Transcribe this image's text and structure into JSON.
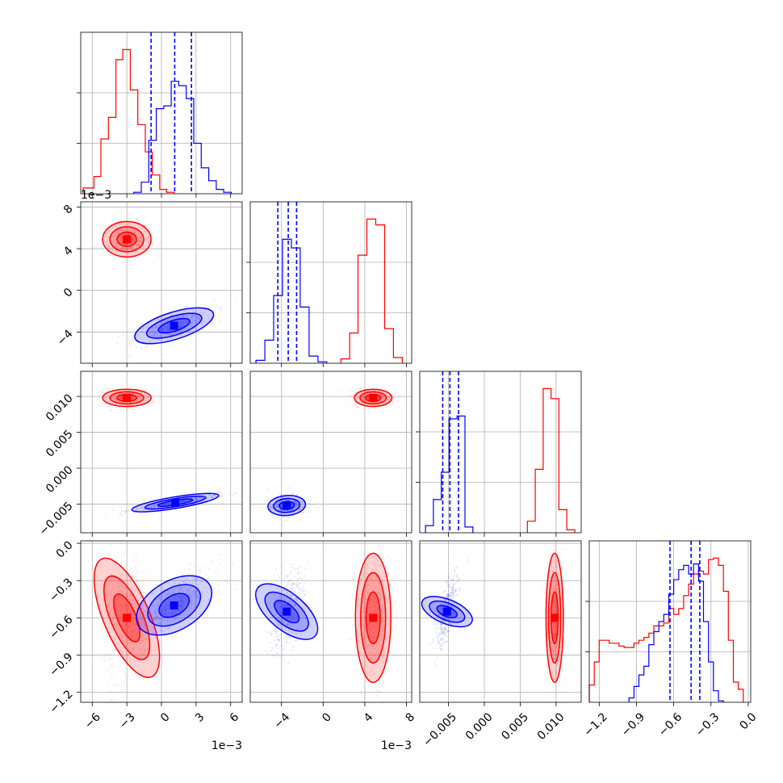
{
  "chart_data": {
    "type": "corner",
    "n_params": 4,
    "colors": {
      "red": "#ff0000",
      "blue": "#0000ff"
    },
    "grid": true,
    "series": [
      {
        "color": "#ff0000"
      },
      {
        "color": "#0000ff"
      }
    ],
    "axes": [
      {
        "range": [
          -7.0,
          7.0
        ],
        "ticks": [
          -6,
          -3,
          0,
          3,
          6
        ],
        "tick_labels": [
          "−6",
          "−3",
          "0",
          "3",
          "6"
        ],
        "offset_label": "1e−3"
      },
      {
        "range": [
          -7.0,
          8.5
        ],
        "ticks": [
          -4,
          0,
          4,
          8
        ],
        "tick_labels": [
          "−4",
          "0",
          "4",
          "8"
        ],
        "offset_label": "1e−3"
      },
      {
        "range": [
          -0.009,
          0.0135
        ],
        "ticks": [
          -0.005,
          0.0,
          0.005,
          0.01
        ],
        "tick_labels": [
          "−0.005",
          "0.000",
          "0.005",
          "0.010"
        ],
        "offset_label": ""
      },
      {
        "range": [
          -1.28,
          0.02
        ],
        "ticks": [
          -1.2,
          -0.9,
          -0.6,
          -0.3,
          0.0
        ],
        "tick_labels": [
          "−1.2",
          "−0.9",
          "−0.6",
          "−0.3",
          "0.0"
        ],
        "offset_label": ""
      }
    ],
    "histograms": [
      {
        "param": 0,
        "ymax": 1.12,
        "red": {
          "edges": [
            -6.8,
            -5.85,
            -5.25,
            -4.6,
            -3.95,
            -3.35,
            -2.7,
            -2.05,
            -1.4,
            -0.8,
            -0.15,
            0.45,
            1.1
          ],
          "counts": [
            0.04,
            0.12,
            0.38,
            0.53,
            0.93,
            1.0,
            0.72,
            0.48,
            0.29,
            0.13,
            0.03,
            0.01
          ]
        },
        "blue": {
          "edges": [
            -2.4,
            -1.75,
            -1.1,
            -0.45,
            0.2,
            0.85,
            1.5,
            2.15,
            2.8,
            3.45,
            4.1,
            4.75,
            5.4,
            6.05
          ],
          "counts": [
            0.01,
            0.08,
            0.37,
            0.59,
            0.61,
            0.78,
            0.75,
            0.66,
            0.35,
            0.18,
            0.09,
            0.03,
            0.01
          ]
        },
        "quantiles": [
          -0.9,
          1.15,
          2.6
        ]
      },
      {
        "param": 1,
        "ymax": 1.12,
        "red": {
          "edges": [
            1.7,
            2.55,
            3.35,
            4.2,
            5.05,
            5.9,
            6.75,
            7.6
          ],
          "counts": [
            0.03,
            0.21,
            0.75,
            1.0,
            0.96,
            0.24,
            0.04
          ]
        },
        "blue": {
          "edges": [
            -6.45,
            -5.6,
            -4.75,
            -3.9,
            -3.05,
            -2.2,
            -1.35,
            -0.5,
            0.35
          ],
          "counts": [
            0.02,
            0.16,
            0.47,
            0.86,
            0.8,
            0.39,
            0.05,
            0.01
          ]
        },
        "quantiles": [
          -4.35,
          -3.35,
          -2.55
        ]
      },
      {
        "param": 2,
        "ymax": 1.12,
        "red": {
          "edges": [
            0.006,
            0.0071,
            0.0082,
            0.0093,
            0.0104,
            0.0115,
            0.0126
          ],
          "counts": [
            0.08,
            0.44,
            1.0,
            0.93,
            0.16,
            0.02
          ]
        },
        "blue": {
          "edges": [
            -0.0082,
            -0.0071,
            -0.006,
            -0.0049,
            -0.0038,
            -0.0027,
            -0.0016
          ],
          "counts": [
            0.05,
            0.23,
            0.42,
            0.79,
            0.81,
            0.04
          ]
        },
        "quantiles": [
          -0.0058,
          -0.0048,
          -0.0036
        ]
      },
      {
        "param": 3,
        "ymax": 1.12,
        "red": {
          "edges": [
            -1.28,
            -1.24,
            -1.2,
            -1.16,
            -1.12,
            -1.08,
            -1.04,
            -1.0,
            -0.96,
            -0.92,
            -0.88,
            -0.84,
            -0.8,
            -0.76,
            -0.72,
            -0.68,
            -0.64,
            -0.6,
            -0.56,
            -0.52,
            -0.48,
            -0.44,
            -0.4,
            -0.36,
            -0.32,
            -0.28,
            -0.24,
            -0.2,
            -0.16,
            -0.12,
            -0.08,
            -0.04
          ],
          "counts": [
            0.12,
            0.28,
            0.43,
            0.43,
            0.41,
            0.41,
            0.39,
            0.38,
            0.38,
            0.41,
            0.43,
            0.45,
            0.48,
            0.53,
            0.53,
            0.55,
            0.65,
            0.61,
            0.65,
            0.74,
            0.82,
            0.89,
            0.91,
            0.89,
            0.99,
            1.0,
            0.95,
            0.77,
            0.43,
            0.14,
            0.09
          ]
        },
        "blue": {
          "edges": [
            -0.96,
            -0.92,
            -0.88,
            -0.84,
            -0.8,
            -0.76,
            -0.72,
            -0.68,
            -0.64,
            -0.6,
            -0.56,
            -0.52,
            -0.48,
            -0.44,
            -0.4,
            -0.36,
            -0.32,
            -0.28,
            -0.24,
            -0.2
          ],
          "counts": [
            0.03,
            0.11,
            0.19,
            0.25,
            0.4,
            0.49,
            0.56,
            0.61,
            0.75,
            0.85,
            0.92,
            0.95,
            0.89,
            0.96,
            0.84,
            0.56,
            0.28,
            0.08,
            0.01
          ]
        },
        "quantiles": [
          -0.63,
          -0.46,
          -0.39
        ]
      }
    ],
    "scatter_panels": [
      {
        "x_param": 0,
        "y_param": 1,
        "red": {
          "center": [
            -3.0,
            4.9
          ],
          "sx": 1.05,
          "sy": 0.85,
          "corr": 0.0
        },
        "blue": {
          "center": [
            1.1,
            -3.4
          ],
          "sx": 1.7,
          "sy": 0.85,
          "corr": 0.7
        }
      },
      {
        "x_param": 0,
        "y_param": 2,
        "red": {
          "center": [
            -3.0,
            0.0098
          ],
          "sx": 1.05,
          "sy": 0.0006,
          "corr": 0.0
        },
        "blue": {
          "center": [
            1.2,
            -0.0048
          ],
          "sx": 1.8,
          "sy": 0.0006,
          "corr": 0.8
        }
      },
      {
        "x_param": 1,
        "y_param": 2,
        "red": {
          "center": [
            4.8,
            0.0098
          ],
          "sx": 0.9,
          "sy": 0.0006,
          "corr": 0.0
        },
        "blue": {
          "center": [
            -3.5,
            -0.0052
          ],
          "sx": 0.9,
          "sy": 0.0007,
          "corr": 0.15
        }
      },
      {
        "x_param": 0,
        "y_param": 3,
        "red": {
          "center": [
            -3.0,
            -0.6
          ],
          "sx": 1.0,
          "sy": 0.26,
          "corr": 0.15
        },
        "blue": {
          "center": [
            1.1,
            -0.5
          ],
          "sx": 1.7,
          "sy": 0.13,
          "corr": 0.7
        }
      },
      {
        "x_param": 1,
        "y_param": 3,
        "red": {
          "center": [
            4.8,
            -0.6
          ],
          "sx": 0.85,
          "sy": 0.26,
          "corr": 0.0
        },
        "blue": {
          "center": [
            -3.5,
            -0.55
          ],
          "sx": 0.85,
          "sy": 0.17,
          "corr": 0.5
        }
      },
      {
        "x_param": 2,
        "y_param": 3,
        "red": {
          "center": [
            0.0098,
            -0.6
          ],
          "sx": 0.0006,
          "sy": 0.26,
          "corr": 0.0
        },
        "blue": {
          "center": [
            -0.0052,
            -0.55
          ],
          "sx": 0.0008,
          "sy": 0.15,
          "corr": 0.75
        }
      }
    ]
  }
}
